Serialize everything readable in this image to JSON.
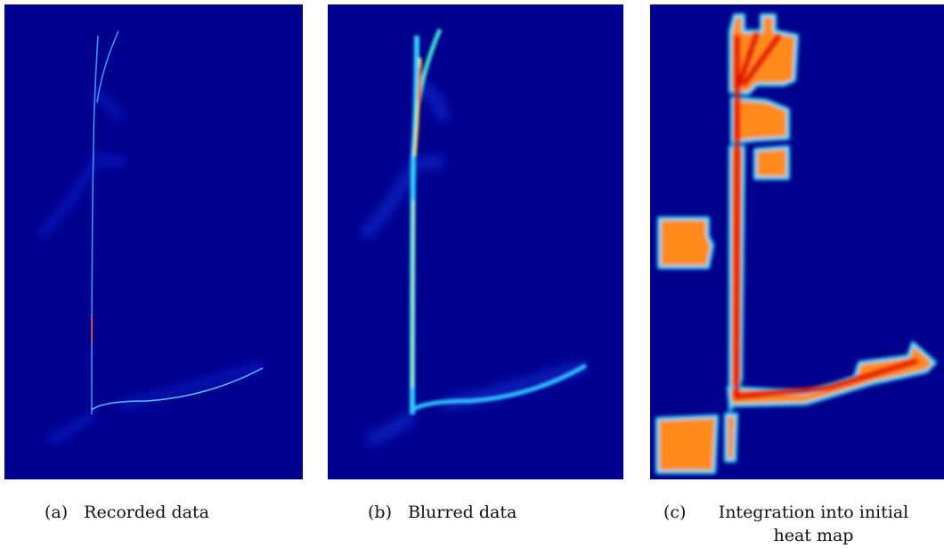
{
  "panels": [
    {
      "label": "(a)",
      "caption": "Recorded data"
    },
    {
      "label": "(b)",
      "caption": "Blurred data"
    },
    {
      "label": "(c)",
      "caption": "Integration into initial heat map"
    }
  ]
}
